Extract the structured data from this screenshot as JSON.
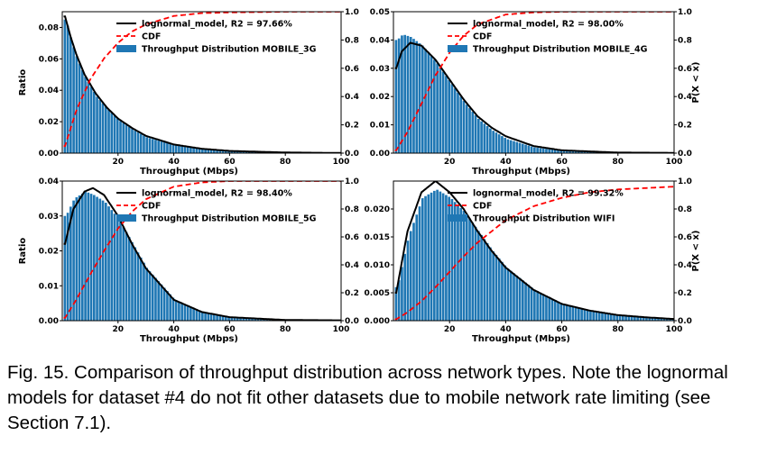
{
  "figure": {
    "caption": "Fig. 15.    Comparison of throughput distribution across network types. Note the lognormal models for dataset #4 do not fit other datasets due to mobile network rate limiting (see Section 7.1)."
  },
  "colors": {
    "bar": "#1f77b4",
    "model": "#000000",
    "cdf": "#ff0000"
  },
  "chart_data": [
    {
      "type": "bar",
      "title": "",
      "xlabel": "Throughput (Mbps)",
      "ylabel": "Ratio",
      "y2label": "",
      "xlim": [
        0,
        100
      ],
      "ylim": [
        0,
        0.09
      ],
      "y2lim": [
        0,
        1.0
      ],
      "xticks": [
        "20",
        "40",
        "60",
        "80",
        "100"
      ],
      "yticks": [
        "0.00",
        "0.02",
        "0.04",
        "0.06",
        "0.08"
      ],
      "y2ticks": [
        "0.0",
        "0.2",
        "0.4",
        "0.6",
        "0.8",
        "1.0"
      ],
      "legend_position": "top-right",
      "series": [
        {
          "name": "lognormal_model, R2 = 97.66%",
          "kind": "line",
          "style": "solid",
          "color": "#000000",
          "x": [
            1,
            3,
            5,
            8,
            12,
            16,
            20,
            25,
            30,
            40,
            50,
            60,
            80,
            100
          ],
          "y": [
            0.087,
            0.074,
            0.063,
            0.05,
            0.038,
            0.029,
            0.022,
            0.016,
            0.011,
            0.0055,
            0.0028,
            0.0014,
            0.0004,
            0.0001
          ]
        },
        {
          "name": "CDF",
          "kind": "line",
          "style": "dashed",
          "color": "#ff0000",
          "axis": "right",
          "x": [
            1,
            5,
            10,
            15,
            20,
            25,
            30,
            40,
            50,
            60,
            80,
            100
          ],
          "y": [
            0.05,
            0.3,
            0.52,
            0.67,
            0.78,
            0.86,
            0.91,
            0.97,
            0.99,
            0.995,
            1.0,
            1.0
          ]
        },
        {
          "name": "Throughput Distribution MOBILE_3G",
          "kind": "bar",
          "color": "#1f77b4",
          "x": [
            1,
            3,
            5,
            8,
            12,
            16,
            20,
            25,
            30,
            40,
            50,
            60,
            80,
            100
          ],
          "y": [
            0.085,
            0.071,
            0.06,
            0.048,
            0.036,
            0.028,
            0.021,
            0.015,
            0.01,
            0.005,
            0.0025,
            0.0012,
            0.0003,
            0.0001
          ]
        }
      ]
    },
    {
      "type": "bar",
      "title": "",
      "xlabel": "Throughput (Mbps)",
      "ylabel": "",
      "y2label": "P(X < x)",
      "xlim": [
        0,
        100
      ],
      "ylim": [
        0,
        0.05
      ],
      "y2lim": [
        0,
        1.0
      ],
      "xticks": [
        "20",
        "40",
        "60",
        "80",
        "100"
      ],
      "yticks": [
        "0.00",
        "0.01",
        "0.02",
        "0.03",
        "0.04",
        "0.05"
      ],
      "y2ticks": [
        "0.0",
        "0.2",
        "0.4",
        "0.6",
        "0.8",
        "1.0"
      ],
      "legend_position": "top-right",
      "series": [
        {
          "name": "lognormal_model, R2 = 98.00%",
          "kind": "line",
          "style": "solid",
          "color": "#000000",
          "x": [
            1,
            3,
            6,
            10,
            15,
            20,
            25,
            30,
            35,
            40,
            50,
            60,
            80,
            100
          ],
          "y": [
            0.03,
            0.036,
            0.039,
            0.038,
            0.033,
            0.026,
            0.019,
            0.013,
            0.009,
            0.006,
            0.0025,
            0.001,
            0.0002,
            0.0001
          ]
        },
        {
          "name": "CDF",
          "kind": "line",
          "style": "dashed",
          "color": "#ff0000",
          "axis": "right",
          "x": [
            1,
            5,
            10,
            15,
            20,
            25,
            30,
            40,
            50,
            60,
            80,
            100
          ],
          "y": [
            0.02,
            0.15,
            0.35,
            0.55,
            0.71,
            0.83,
            0.91,
            0.98,
            0.995,
            1.0,
            1.0,
            1.0
          ]
        },
        {
          "name": "Throughput Distribution MOBILE_4G",
          "kind": "bar",
          "color": "#1f77b4",
          "x": [
            1,
            3,
            6,
            10,
            15,
            20,
            25,
            30,
            35,
            40,
            50,
            60,
            80,
            100
          ],
          "y": [
            0.04,
            0.042,
            0.041,
            0.038,
            0.032,
            0.025,
            0.018,
            0.012,
            0.008,
            0.005,
            0.002,
            0.0008,
            0.0002,
            0.0001
          ]
        }
      ]
    },
    {
      "type": "bar",
      "title": "",
      "xlabel": "Throughput (Mbps)",
      "ylabel": "Ratio",
      "y2label": "",
      "xlim": [
        0,
        100
      ],
      "ylim": [
        0,
        0.04
      ],
      "y2lim": [
        0,
        1.0
      ],
      "xticks": [
        "20",
        "40",
        "60",
        "80",
        "100"
      ],
      "yticks": [
        "0.00",
        "0.01",
        "0.02",
        "0.03",
        "0.04"
      ],
      "y2ticks": [
        "0.0",
        "0.2",
        "0.4",
        "0.6",
        "0.8",
        "1.0"
      ],
      "legend_position": "top-right",
      "series": [
        {
          "name": "lognormal_model, R2 = 98.40%",
          "kind": "line",
          "style": "solid",
          "color": "#000000",
          "x": [
            1,
            4,
            8,
            11,
            15,
            20,
            25,
            30,
            40,
            50,
            60,
            80,
            100
          ],
          "y": [
            0.022,
            0.032,
            0.037,
            0.038,
            0.036,
            0.03,
            0.022,
            0.015,
            0.006,
            0.0025,
            0.001,
            0.0002,
            0.0001
          ]
        },
        {
          "name": "CDF",
          "kind": "line",
          "style": "dashed",
          "color": "#ff0000",
          "axis": "right",
          "x": [
            1,
            5,
            10,
            15,
            20,
            25,
            30,
            40,
            50,
            60,
            80,
            100
          ],
          "y": [
            0.02,
            0.15,
            0.33,
            0.5,
            0.66,
            0.78,
            0.87,
            0.96,
            0.99,
            1.0,
            1.0,
            1.0
          ]
        },
        {
          "name": "Throughput Distribution MOBILE_5G",
          "kind": "bar",
          "color": "#1f77b4",
          "x": [
            1,
            4,
            8,
            11,
            15,
            20,
            25,
            30,
            40,
            50,
            60,
            80,
            100
          ],
          "y": [
            0.03,
            0.035,
            0.037,
            0.036,
            0.034,
            0.029,
            0.022,
            0.015,
            0.006,
            0.0025,
            0.001,
            0.0002,
            0.0001
          ]
        }
      ]
    },
    {
      "type": "bar",
      "title": "",
      "xlabel": "Throughput (Mbps)",
      "ylabel": "",
      "y2label": "P(X < x)",
      "xlim": [
        0,
        100
      ],
      "ylim": [
        0,
        0.025
      ],
      "y2lim": [
        0,
        1.0
      ],
      "xticks": [
        "20",
        "40",
        "60",
        "80",
        "100"
      ],
      "yticks": [
        "0.000",
        "0.005",
        "0.010",
        "0.015",
        "0.020"
      ],
      "y2ticks": [
        "0.0",
        "0.2",
        "0.4",
        "0.6",
        "0.8",
        "1.0"
      ],
      "legend_position": "top-right",
      "series": [
        {
          "name": "lognormal_model, R2 = 99.32%",
          "kind": "line",
          "style": "solid",
          "color": "#000000",
          "x": [
            1,
            5,
            10,
            15,
            20,
            25,
            30,
            35,
            40,
            50,
            60,
            70,
            80,
            90,
            100
          ],
          "y": [
            0.005,
            0.016,
            0.023,
            0.025,
            0.023,
            0.02,
            0.016,
            0.0125,
            0.0095,
            0.0055,
            0.003,
            0.0018,
            0.001,
            0.0006,
            0.0003
          ]
        },
        {
          "name": "CDF",
          "kind": "line",
          "style": "dashed",
          "color": "#ff0000",
          "axis": "right",
          "x": [
            1,
            5,
            10,
            15,
            20,
            25,
            30,
            40,
            50,
            60,
            70,
            80,
            90,
            100
          ],
          "y": [
            0.01,
            0.06,
            0.14,
            0.24,
            0.35,
            0.46,
            0.56,
            0.72,
            0.82,
            0.88,
            0.92,
            0.94,
            0.95,
            0.96
          ]
        },
        {
          "name": "Throughput Distribution WIFI",
          "kind": "bar",
          "color": "#1f77b4",
          "x": [
            1,
            5,
            10,
            15,
            20,
            25,
            30,
            35,
            40,
            50,
            60,
            70,
            80,
            90,
            100
          ],
          "y": [
            0.006,
            0.015,
            0.022,
            0.0235,
            0.022,
            0.0195,
            0.016,
            0.0125,
            0.0095,
            0.0055,
            0.003,
            0.0018,
            0.001,
            0.0006,
            0.0003
          ]
        }
      ]
    }
  ]
}
